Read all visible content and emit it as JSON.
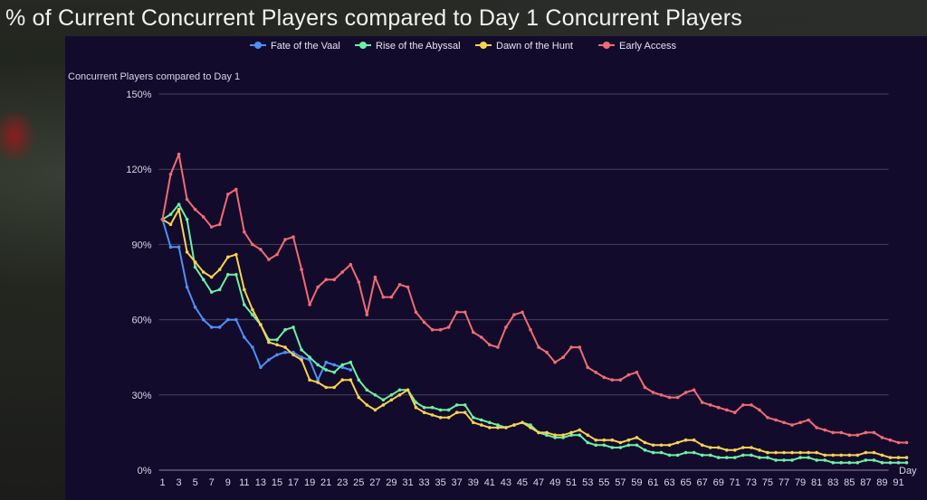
{
  "page": {
    "title": "% of Current Concurrent Players compared to Day 1 Concurrent Players"
  },
  "chart_data": {
    "type": "line",
    "ylabel": "Concurrent Players compared to Day 1",
    "xlabel": "Day",
    "ylim": [
      0,
      150
    ],
    "yticks": [
      0,
      30,
      60,
      90,
      120,
      150
    ],
    "ytick_labels": [
      "0%",
      "30%",
      "60%",
      "90%",
      "120%",
      "150%"
    ],
    "xlim": [
      1,
      92
    ],
    "xticks": [
      1,
      3,
      5,
      7,
      9,
      11,
      13,
      15,
      17,
      19,
      21,
      23,
      25,
      27,
      29,
      31,
      33,
      35,
      37,
      39,
      41,
      43,
      45,
      47,
      49,
      51,
      53,
      55,
      57,
      59,
      61,
      63,
      65,
      67,
      69,
      71,
      73,
      75,
      77,
      79,
      81,
      83,
      85,
      87,
      89,
      91
    ],
    "grid": true,
    "legend_position": "top",
    "series": [
      {
        "name": "Fate of the Vaal",
        "color": "#4f8ff7",
        "x": [
          1,
          2,
          3,
          4,
          5,
          6,
          7,
          8,
          9,
          10,
          11,
          12,
          13,
          14,
          15,
          16,
          17,
          18,
          19,
          20,
          21,
          22,
          23,
          24
        ],
        "values": [
          100,
          89,
          89,
          73,
          65,
          60,
          57,
          57,
          60,
          60,
          53,
          49,
          41,
          44,
          46,
          47,
          47,
          45,
          44,
          36,
          43,
          42,
          41,
          40
        ]
      },
      {
        "name": "Rise of the Abyssal",
        "color": "#6ef0a4",
        "x": [
          1,
          2,
          3,
          4,
          5,
          6,
          7,
          8,
          9,
          10,
          11,
          12,
          13,
          14,
          15,
          16,
          17,
          18,
          19,
          20,
          21,
          22,
          23,
          24,
          25,
          26,
          27,
          28,
          29,
          30,
          31,
          32,
          33,
          34,
          35,
          36,
          37,
          38,
          39,
          40,
          41,
          42,
          43,
          44,
          45,
          46,
          47,
          48,
          49,
          50,
          51,
          52,
          53,
          54,
          55,
          56,
          57,
          58,
          59,
          60,
          61,
          62,
          63,
          64,
          65,
          66,
          67,
          68,
          69,
          70,
          71,
          72,
          73,
          74,
          75,
          76,
          77,
          78,
          79,
          80,
          81,
          82,
          83,
          84,
          85,
          86,
          87,
          88,
          89,
          90,
          91,
          92
        ],
        "values": [
          100,
          102,
          106,
          100,
          81,
          76,
          71,
          72,
          78,
          78,
          66,
          62,
          58,
          52,
          52,
          56,
          57,
          48,
          45,
          42,
          40,
          39,
          42,
          43,
          36,
          32,
          30,
          28,
          30,
          32,
          32,
          27,
          25,
          25,
          24,
          24,
          26,
          26,
          21,
          20,
          19,
          18,
          17,
          18,
          19,
          18,
          15,
          14,
          13,
          13,
          14,
          14,
          11,
          10,
          10,
          9,
          9,
          10,
          10,
          8,
          7,
          7,
          6,
          6,
          7,
          7,
          6,
          6,
          5,
          5,
          5,
          6,
          6,
          5,
          5,
          4,
          4,
          4,
          5,
          5,
          4,
          4,
          3,
          3,
          3,
          3,
          4,
          4,
          3,
          3,
          3,
          3
        ]
      },
      {
        "name": "Dawn of the Hunt",
        "color": "#f7d154",
        "x": [
          1,
          2,
          3,
          4,
          5,
          6,
          7,
          8,
          9,
          10,
          11,
          12,
          13,
          14,
          15,
          16,
          17,
          18,
          19,
          20,
          21,
          22,
          23,
          24,
          25,
          26,
          27,
          28,
          29,
          30,
          31,
          32,
          33,
          34,
          35,
          36,
          37,
          38,
          39,
          40,
          41,
          42,
          43,
          44,
          45,
          46,
          47,
          48,
          49,
          50,
          51,
          52,
          53,
          54,
          55,
          56,
          57,
          58,
          59,
          60,
          61,
          62,
          63,
          64,
          65,
          66,
          67,
          68,
          69,
          70,
          71,
          72,
          73,
          74,
          75,
          76,
          77,
          78,
          79,
          80,
          81,
          82,
          83,
          84,
          85,
          86,
          87,
          88,
          89,
          90,
          91,
          92
        ],
        "values": [
          100,
          98,
          104,
          87,
          83,
          79,
          77,
          80,
          85,
          86,
          72,
          64,
          58,
          51,
          50,
          49,
          46,
          44,
          36,
          35,
          33,
          33,
          36,
          36,
          29,
          26,
          24,
          26,
          28,
          30,
          32,
          25,
          23,
          22,
          21,
          21,
          23,
          23,
          19,
          18,
          17,
          17,
          17,
          18,
          19,
          17,
          15,
          15,
          14,
          14,
          15,
          16,
          14,
          12,
          12,
          12,
          11,
          12,
          13,
          11,
          10,
          10,
          10,
          11,
          12,
          12,
          10,
          9,
          9,
          8,
          8,
          9,
          9,
          8,
          7,
          7,
          7,
          7,
          7,
          7,
          7,
          6,
          6,
          6,
          6,
          6,
          7,
          7,
          6,
          5,
          5,
          5
        ]
      },
      {
        "name": "Early Access",
        "color": "#f06b73",
        "x": [
          1,
          2,
          3,
          4,
          5,
          6,
          7,
          8,
          9,
          10,
          11,
          12,
          13,
          14,
          15,
          16,
          17,
          18,
          19,
          20,
          21,
          22,
          23,
          24,
          25,
          26,
          27,
          28,
          29,
          30,
          31,
          32,
          33,
          34,
          35,
          36,
          37,
          38,
          39,
          40,
          41,
          42,
          43,
          44,
          45,
          46,
          47,
          48,
          49,
          50,
          51,
          52,
          53,
          54,
          55,
          56,
          57,
          58,
          59,
          60,
          61,
          62,
          63,
          64,
          65,
          66,
          67,
          68,
          69,
          70,
          71,
          72,
          73,
          74,
          75,
          76,
          77,
          78,
          79,
          80,
          81,
          82,
          83,
          84,
          85,
          86,
          87,
          88,
          89,
          90,
          91,
          92
        ],
        "values": [
          100,
          118,
          126,
          108,
          104,
          101,
          97,
          98,
          110,
          112,
          95,
          90,
          88,
          84,
          86,
          92,
          93,
          80,
          66,
          73,
          76,
          76,
          79,
          82,
          75,
          62,
          77,
          69,
          69,
          74,
          73,
          63,
          59,
          56,
          56,
          57,
          63,
          63,
          55,
          53,
          50,
          49,
          57,
          62,
          63,
          56,
          49,
          47,
          43,
          45,
          49,
          49,
          41,
          39,
          37,
          36,
          36,
          38,
          39,
          33,
          31,
          30,
          29,
          29,
          31,
          32,
          27,
          26,
          25,
          24,
          23,
          26,
          26,
          24,
          21,
          20,
          19,
          18,
          19,
          20,
          17,
          16,
          15,
          15,
          14,
          14,
          15,
          15,
          13,
          12,
          11,
          11
        ]
      }
    ]
  }
}
